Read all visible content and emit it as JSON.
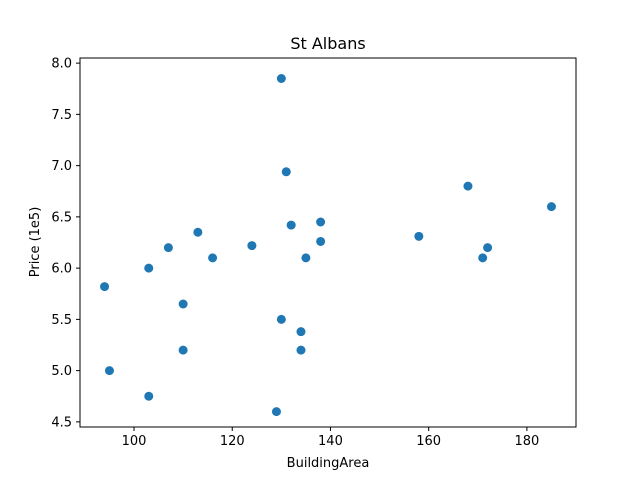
{
  "chart_data": {
    "type": "scatter",
    "title": "St Albans",
    "xlabel": "BuildingArea",
    "ylabel": "Price (1e5)",
    "xlim": [
      89,
      190
    ],
    "ylim": [
      4.45,
      8.05
    ],
    "xticks": [
      100,
      120,
      140,
      160,
      180
    ],
    "yticks": [
      4.5,
      5.0,
      5.5,
      6.0,
      6.5,
      7.0,
      7.5,
      8.0
    ],
    "xtick_labels": [
      "100",
      "120",
      "140",
      "160",
      "180"
    ],
    "ytick_labels": [
      "4.5",
      "5.0",
      "5.5",
      "6.0",
      "6.5",
      "7.0",
      "7.5",
      "8.0"
    ],
    "grid": false,
    "marker_color": "#1f77b4",
    "x": [
      94,
      95,
      103,
      103,
      107,
      110,
      110,
      113,
      116,
      124,
      129,
      130,
      130,
      131,
      132,
      134,
      134,
      135,
      138,
      138,
      158,
      168,
      171,
      172,
      185
    ],
    "y": [
      5.82,
      5.0,
      6.0,
      4.75,
      6.2,
      5.65,
      5.2,
      6.35,
      6.1,
      6.22,
      4.6,
      7.85,
      5.5,
      6.94,
      6.42,
      5.38,
      5.2,
      6.1,
      6.26,
      6.45,
      6.31,
      6.8,
      6.1,
      6.2,
      6.6
    ]
  }
}
